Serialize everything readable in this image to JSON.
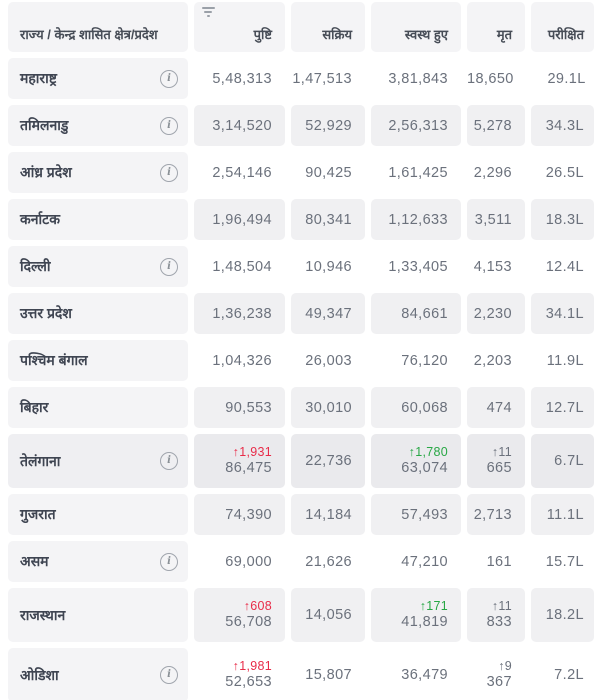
{
  "table": {
    "columns": {
      "state": "राज्य / केन्द्र शासित क्षेत्र/प्रदेश",
      "confirmed": "पुष्टि",
      "active": "सक्रिय",
      "recovered": "स्वस्थ हुए",
      "deceased": "मृत",
      "tested": "परीक्षित"
    },
    "rows": [
      {
        "state": "महाराष्ट्र",
        "has_info": true,
        "confirmed": "5,48,313",
        "active": "1,47,513",
        "recovered": "3,81,843",
        "deceased": "18,650",
        "tested": "29.1L"
      },
      {
        "state": "तमिलनाडु",
        "has_info": true,
        "confirmed": "3,14,520",
        "active": "52,929",
        "recovered": "2,56,313",
        "deceased": "5,278",
        "tested": "34.3L"
      },
      {
        "state": "आंध्र प्रदेश",
        "has_info": true,
        "confirmed": "2,54,146",
        "active": "90,425",
        "recovered": "1,61,425",
        "deceased": "2,296",
        "tested": "26.5L"
      },
      {
        "state": "कर्नाटक",
        "has_info": false,
        "confirmed": "1,96,494",
        "active": "80,341",
        "recovered": "1,12,633",
        "deceased": "3,511",
        "tested": "18.3L"
      },
      {
        "state": "दिल्ली",
        "has_info": true,
        "confirmed": "1,48,504",
        "active": "10,946",
        "recovered": "1,33,405",
        "deceased": "4,153",
        "tested": "12.4L"
      },
      {
        "state": "उत्तर प्रदेश",
        "has_info": false,
        "confirmed": "1,36,238",
        "active": "49,347",
        "recovered": "84,661",
        "deceased": "2,230",
        "tested": "34.1L"
      },
      {
        "state": "पश्चिम बंगाल",
        "has_info": false,
        "confirmed": "1,04,326",
        "active": "26,003",
        "recovered": "76,120",
        "deceased": "2,203",
        "tested": "11.9L"
      },
      {
        "state": "बिहार",
        "has_info": false,
        "confirmed": "90,553",
        "active": "30,010",
        "recovered": "60,068",
        "deceased": "474",
        "tested": "12.7L"
      },
      {
        "state": "तेलंगाना",
        "has_info": true,
        "confirmed_delta": "↑1,931",
        "confirmed": "86,475",
        "active": "22,736",
        "recovered_delta": "↑1,780",
        "recovered": "63,074",
        "deceased_delta": "↑11",
        "deceased": "665",
        "tested": "6.7L"
      },
      {
        "state": "गुजरात",
        "has_info": false,
        "confirmed": "74,390",
        "active": "14,184",
        "recovered": "57,493",
        "deceased": "2,713",
        "tested": "11.1L"
      },
      {
        "state": "असम",
        "has_info": true,
        "confirmed": "69,000",
        "active": "21,626",
        "recovered": "47,210",
        "deceased": "161",
        "tested": "15.7L"
      },
      {
        "state": "राजस्थान",
        "has_info": false,
        "confirmed_delta": "↑608",
        "confirmed": "56,708",
        "active": "14,056",
        "recovered_delta": "↑171",
        "recovered": "41,819",
        "deceased_delta": "↑11",
        "deceased": "833",
        "tested": "18.2L"
      },
      {
        "state": "ओडिशा",
        "has_info": true,
        "confirmed_delta": "↑1,981",
        "confirmed": "52,653",
        "active": "15,807",
        "recovered": "36,479",
        "deceased_delta": "↑9",
        "deceased": "367",
        "tested": "7.2L"
      }
    ]
  },
  "icons": {
    "info_glyph": "i",
    "filter": "filter-lines-icon"
  },
  "colors": {
    "confirmed_delta": "#e82c49",
    "recovered_delta": "#28a745",
    "deceased_delta": "#6b717c",
    "cell_gray": "#f0f0f2",
    "name_cell_gray": "#f4f4f6"
  }
}
